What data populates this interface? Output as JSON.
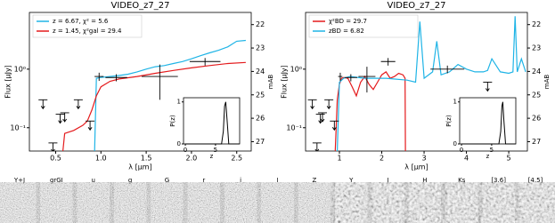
{
  "chart_data": [
    {
      "type": "line",
      "title": "VIDEO_z7_27",
      "xlabel": "λ [μm]",
      "ylabel": "Flux [μJy]",
      "y2label": "mAB",
      "xlim": [
        0.21,
        2.66
      ],
      "xticks": [
        0.5,
        {
          "value": 1,
          "label": "1.0"
        },
        1.5,
        {
          "value": 2,
          "label": "2.0"
        },
        2.5
      ],
      "ylim": [
        0.04,
        9.3
      ],
      "log_y": true,
      "yticks": [
        {
          "value": 0.1,
          "label": "10⁻¹"
        },
        {
          "value": 1,
          "label": "10⁰"
        }
      ],
      "y2lim": [
        27.4,
        21.48
      ],
      "y2ticks": [
        22,
        23,
        24,
        25,
        26,
        27
      ],
      "legend": "upper left",
      "series": [
        {
          "name": "z = 6.67, χ² = 5.6",
          "color": "#1fb4e6",
          "x": [
            0.93,
            0.95,
            1.0,
            1.1,
            1.2,
            1.3,
            1.4,
            1.5,
            1.6,
            1.7,
            1.8,
            1.9,
            2.0,
            2.1,
            2.2,
            2.3,
            2.4,
            2.5,
            2.6
          ],
          "values": [
            0.04,
            0.7,
            0.72,
            0.75,
            0.78,
            0.82,
            0.9,
            1.0,
            1.1,
            1.15,
            1.25,
            1.35,
            1.5,
            1.7,
            1.9,
            2.1,
            2.4,
            3.0,
            3.1
          ]
        },
        {
          "name": "z = 1.45, χ²gal = 29.4",
          "color": "#e41a1c",
          "x": [
            0.58,
            0.6,
            0.7,
            0.8,
            0.85,
            0.9,
            0.95,
            1.0,
            1.1,
            1.2,
            1.4,
            1.6,
            1.8,
            2.0,
            2.2,
            2.4,
            2.6
          ],
          "values": [
            0.04,
            0.08,
            0.09,
            0.11,
            0.13,
            0.2,
            0.35,
            0.5,
            0.62,
            0.68,
            0.75,
            0.85,
            0.95,
            1.05,
            1.15,
            1.25,
            1.3
          ]
        }
      ],
      "photometry": {
        "x": [
          0.98,
          1.17,
          1.65,
          2.15
        ],
        "values": [
          0.75,
          0.72,
          0.75,
          1.35
        ],
        "xerr": [
          0.05,
          0.12,
          0.2,
          0.17
        ],
        "yerr": [
          0.12,
          0.1,
          0.45,
          0.2
        ]
      },
      "limits": {
        "x": [
          0.36,
          0.47,
          0.55,
          0.6,
          0.75,
          0.88
        ],
        "values": [
          0.3,
          0.055,
          0.17,
          0.18,
          0.3,
          0.13
        ]
      },
      "inset": {
        "xlabel": "z",
        "ylabel": "P(z)",
        "xlim": [
          -0.3,
          9
        ],
        "xticks": [
          0,
          5
        ],
        "ylim": [
          0,
          1.1
        ],
        "yticks": [
          0,
          1
        ],
        "x": [
          0,
          6.0,
          6.3,
          6.5,
          6.7,
          6.9,
          7.2,
          9
        ],
        "values": [
          0,
          0,
          0.3,
          0.9,
          1.0,
          0.6,
          0,
          0
        ]
      }
    },
    {
      "type": "line",
      "title": "VIDEO_z7_27",
      "xlabel": "λ [μm]",
      "ylabel": "Flux [μJy]",
      "y2label": "mAB",
      "xlim": [
        0.2,
        5.44
      ],
      "xticks": [
        1,
        2,
        3,
        4,
        5
      ],
      "ylim": [
        0.04,
        9.3
      ],
      "log_y": true,
      "yticks": [
        {
          "value": 0.1,
          "label": "10⁻¹"
        },
        {
          "value": 1,
          "label": "10⁰"
        }
      ],
      "y2lim": [
        27.4,
        21.48
      ],
      "y2ticks": [
        22,
        23,
        24,
        25,
        26,
        27
      ],
      "legend": "upper left",
      "series": [
        {
          "name": "χ²BD = 29.7",
          "color": "#e41a1c",
          "x": [
            0.9,
            0.95,
            1.0,
            1.05,
            1.1,
            1.2,
            1.3,
            1.4,
            1.5,
            1.6,
            1.7,
            1.8,
            1.9,
            2.0,
            2.1,
            2.2,
            2.3,
            2.4,
            2.5,
            2.55,
            2.56
          ],
          "values": [
            0.04,
            0.3,
            0.55,
            0.7,
            0.72,
            0.7,
            0.5,
            0.35,
            0.6,
            0.75,
            0.55,
            0.45,
            0.6,
            0.8,
            0.9,
            0.7,
            0.75,
            0.85,
            0.8,
            0.7,
            0.04
          ]
        },
        {
          "name": "zBD = 6.82",
          "color": "#1fb4e6",
          "x": [
            0.95,
            1.0,
            1.1,
            1.25,
            1.6,
            2.1,
            2.6,
            2.8,
            2.9,
            3.0,
            3.2,
            3.3,
            3.4,
            3.6,
            3.8,
            4.0,
            4.2,
            4.4,
            4.5,
            4.6,
            4.8,
            5.0,
            5.1,
            5.15,
            5.2,
            5.3,
            5.4
          ],
          "values": [
            0.04,
            0.6,
            0.7,
            0.75,
            0.7,
            0.7,
            0.65,
            0.6,
            6.5,
            0.7,
            0.9,
            3,
            0.8,
            0.9,
            1.2,
            1.0,
            0.9,
            0.9,
            0.95,
            1.5,
            0.9,
            0.85,
            0.9,
            8,
            0.9,
            1.5,
            0.9
          ]
        }
      ],
      "photometry": {
        "x": [
          1.02,
          1.27,
          1.65,
          2.15,
          3.55
        ],
        "values": [
          0.75,
          0.72,
          0.75,
          1.35,
          1.0
        ],
        "xerr": [
          0.05,
          0.15,
          0.2,
          0.17,
          0.4
        ],
        "yerr": [
          0.12,
          0.1,
          0.35,
          0.2,
          0.15
        ]
      },
      "limits": {
        "x": [
          0.36,
          0.47,
          0.55,
          0.6,
          0.75,
          0.88,
          4.5
        ],
        "values": [
          0.3,
          0.055,
          0.17,
          0.18,
          0.3,
          0.13,
          0.6
        ]
      },
      "inset": {
        "xlabel": "z",
        "ylabel": "P(z)",
        "xlim": [
          -0.3,
          9
        ],
        "xticks": [
          0,
          5
        ],
        "ylim": [
          0,
          1.1
        ],
        "yticks": [
          0,
          1
        ],
        "x": [
          0,
          6.2,
          6.5,
          6.7,
          6.85,
          7.0,
          7.3,
          9
        ],
        "values": [
          0,
          0,
          0.3,
          0.9,
          1.0,
          0.6,
          0,
          0
        ]
      }
    }
  ],
  "cutouts": {
    "labels": [
      "Y+J",
      "grGI",
      "u",
      "g",
      "G",
      "r",
      "i",
      "I",
      "Z",
      "Y",
      "J",
      "H",
      "Ks",
      "[3.6]",
      "[4.5]"
    ]
  }
}
